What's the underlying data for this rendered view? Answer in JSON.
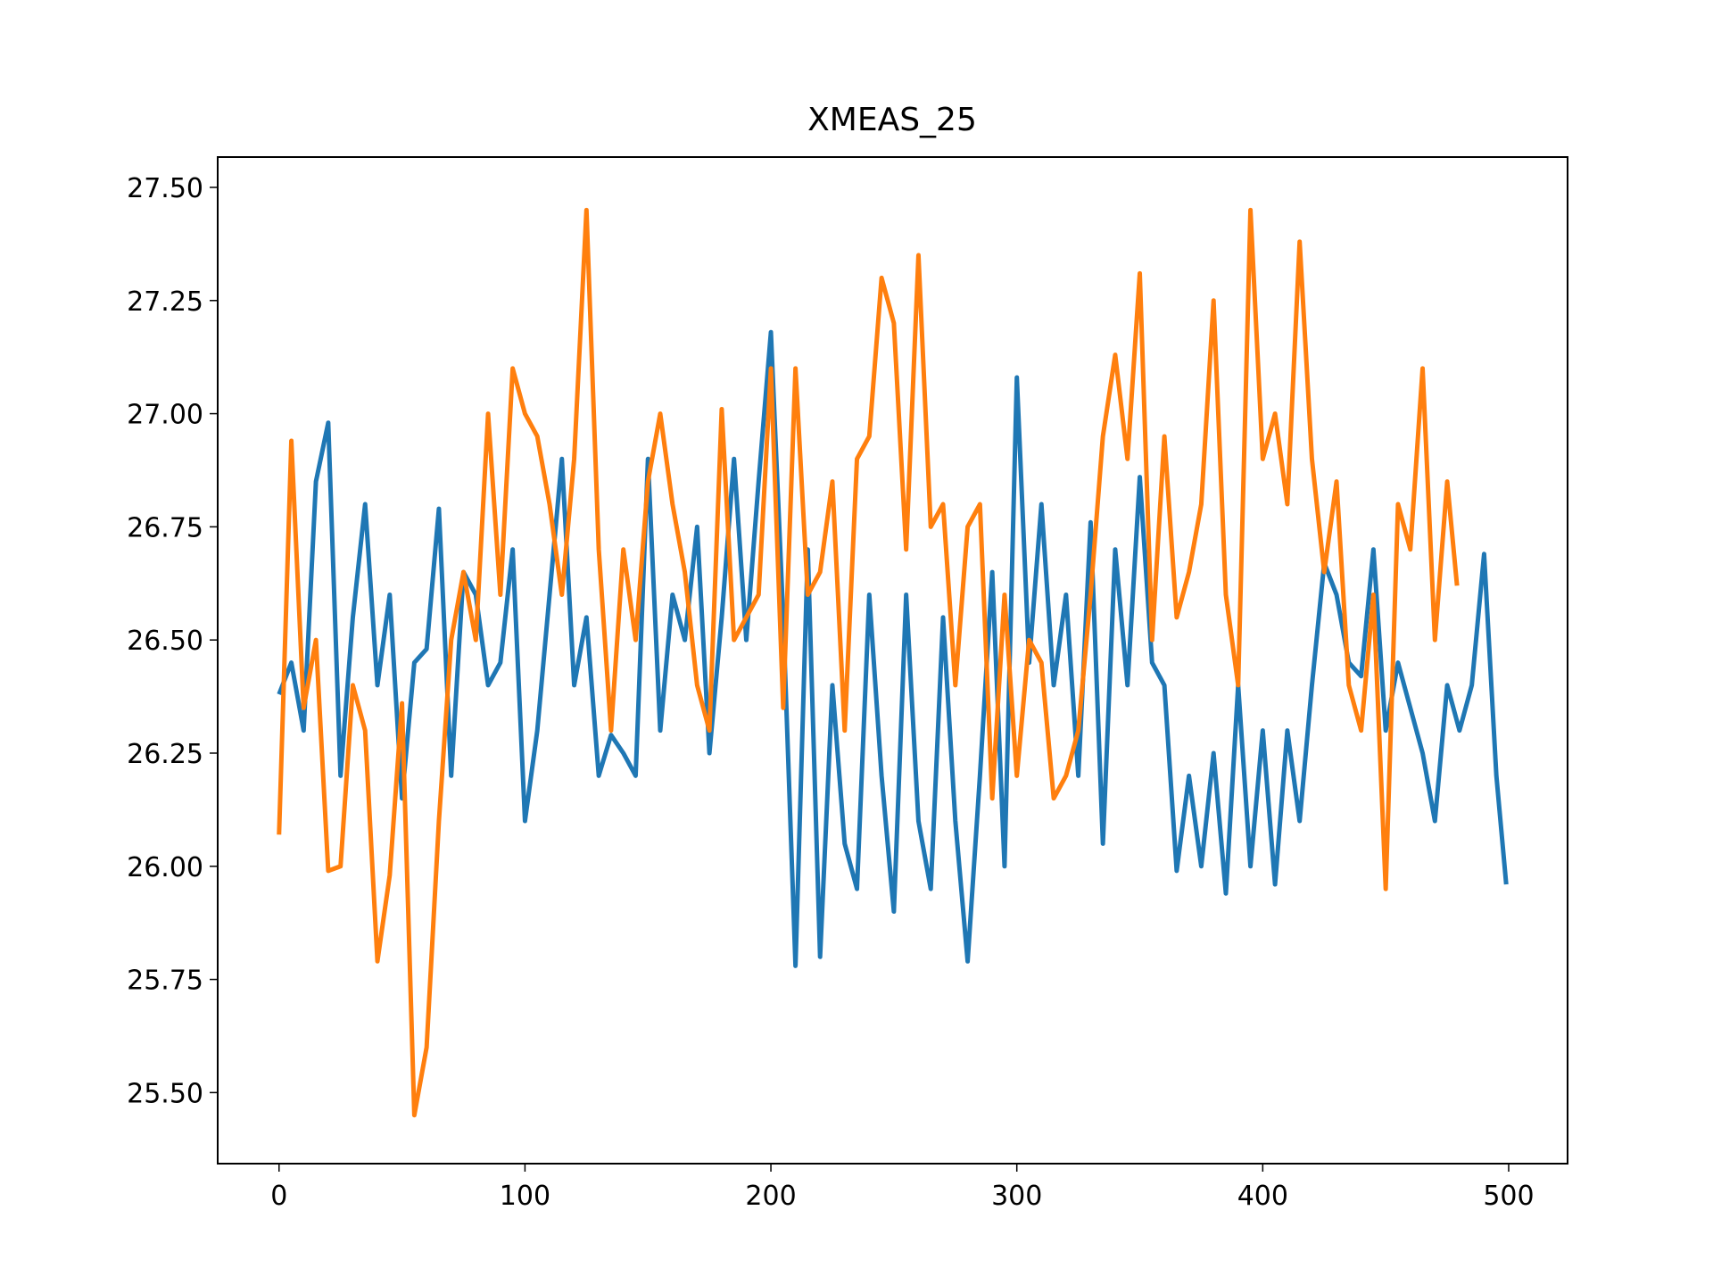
{
  "chart_data": {
    "type": "line",
    "title": "XMEAS_25",
    "xlim": [
      -24.95,
      523.95
    ],
    "ylim": [
      25.343,
      27.567
    ],
    "xticks": [
      0,
      100,
      200,
      300,
      400,
      500
    ],
    "yticks": [
      {
        "value": 25.5,
        "label": "25.50"
      },
      25.75,
      {
        "value": 26,
        "label": "26.00"
      },
      26.25,
      {
        "value": 26.5,
        "label": "26.50"
      },
      26.75,
      {
        "value": 27,
        "label": "27.00"
      },
      27.25,
      {
        "value": 27.5,
        "label": "27.50"
      }
    ],
    "series": [
      {
        "color": "#1f77b4",
        "x": [
          0,
          5,
          10,
          15,
          20,
          25,
          30,
          35,
          40,
          45,
          50,
          55,
          60,
          65,
          70,
          75,
          80,
          85,
          90,
          95,
          100,
          105,
          110,
          115,
          120,
          125,
          130,
          135,
          140,
          145,
          150,
          155,
          160,
          165,
          170,
          175,
          180,
          185,
          190,
          195,
          200,
          205,
          210,
          215,
          220,
          225,
          230,
          235,
          240,
          245,
          250,
          255,
          260,
          265,
          270,
          275,
          280,
          285,
          290,
          295,
          300,
          305,
          310,
          315,
          320,
          325,
          330,
          335,
          340,
          345,
          350,
          355,
          360,
          365,
          370,
          375,
          380,
          385,
          390,
          395,
          400,
          405,
          410,
          415,
          420,
          425,
          430,
          435,
          440,
          445,
          450,
          455,
          460,
          465,
          470,
          475,
          480,
          485,
          490,
          495,
          499
        ],
        "values": [
          26.38,
          26.45,
          26.3,
          26.85,
          26.98,
          26.2,
          26.55,
          26.8,
          26.4,
          26.6,
          26.15,
          26.45,
          26.48,
          26.79,
          26.2,
          26.65,
          26.6,
          26.4,
          26.45,
          26.7,
          26.1,
          26.3,
          26.6,
          26.9,
          26.4,
          26.55,
          26.2,
          26.29,
          26.25,
          26.2,
          26.9,
          26.3,
          26.6,
          26.5,
          26.75,
          26.25,
          26.55,
          26.9,
          26.5,
          26.85,
          27.18,
          26.55,
          25.78,
          26.7,
          25.8,
          26.4,
          26.05,
          25.95,
          26.6,
          26.2,
          25.9,
          26.6,
          26.1,
          25.95,
          26.55,
          26.1,
          25.79,
          26.2,
          26.65,
          26.0,
          27.08,
          26.45,
          26.8,
          26.4,
          26.6,
          26.2,
          26.76,
          26.05,
          26.7,
          26.4,
          26.86,
          26.45,
          26.4,
          25.99,
          26.2,
          26.0,
          26.25,
          25.94,
          26.4,
          26.0,
          26.3,
          25.96,
          26.3,
          26.1,
          26.4,
          26.67,
          26.6,
          26.45,
          26.42,
          26.7,
          26.3,
          26.45,
          26.35,
          26.25,
          26.1,
          26.4,
          26.3,
          26.4,
          26.69,
          26.2,
          25.96
        ]
      },
      {
        "color": "#ff7f0e",
        "x": [
          0,
          5,
          10,
          15,
          20,
          25,
          30,
          35,
          40,
          45,
          50,
          55,
          60,
          65,
          70,
          75,
          80,
          85,
          90,
          95,
          100,
          105,
          110,
          115,
          120,
          125,
          130,
          135,
          140,
          145,
          150,
          155,
          160,
          165,
          170,
          175,
          180,
          185,
          190,
          195,
          200,
          205,
          210,
          215,
          220,
          225,
          230,
          235,
          240,
          245,
          250,
          255,
          260,
          265,
          270,
          275,
          280,
          285,
          290,
          295,
          300,
          305,
          310,
          315,
          320,
          325,
          330,
          335,
          340,
          345,
          350,
          355,
          360,
          365,
          370,
          375,
          380,
          385,
          390,
          395,
          400,
          405,
          410,
          415,
          420,
          425,
          430,
          435,
          440,
          445,
          450,
          455,
          460,
          465,
          470,
          475,
          479
        ],
        "values": [
          26.07,
          26.94,
          26.35,
          26.5,
          25.99,
          26.0,
          26.4,
          26.3,
          25.79,
          25.98,
          26.36,
          25.45,
          25.6,
          26.1,
          26.5,
          26.65,
          26.5,
          27.0,
          26.6,
          27.1,
          27.0,
          26.95,
          26.8,
          26.6,
          26.9,
          27.45,
          26.7,
          26.3,
          26.7,
          26.5,
          26.85,
          27.0,
          26.8,
          26.65,
          26.4,
          26.3,
          27.01,
          26.5,
          26.55,
          26.6,
          27.1,
          26.35,
          27.1,
          26.6,
          26.65,
          26.85,
          26.3,
          26.9,
          26.95,
          27.3,
          27.2,
          26.7,
          27.35,
          26.75,
          26.8,
          26.4,
          26.75,
          26.8,
          26.15,
          26.6,
          26.2,
          26.5,
          26.45,
          26.15,
          26.2,
          26.3,
          26.6,
          26.95,
          27.13,
          26.9,
          27.31,
          26.5,
          26.95,
          26.55,
          26.65,
          26.8,
          27.25,
          26.6,
          26.4,
          27.45,
          26.9,
          27.0,
          26.8,
          27.38,
          26.9,
          26.65,
          26.85,
          26.4,
          26.3,
          26.6,
          25.95,
          26.8,
          26.7,
          27.1,
          26.5,
          26.85,
          26.62
        ]
      }
    ]
  }
}
